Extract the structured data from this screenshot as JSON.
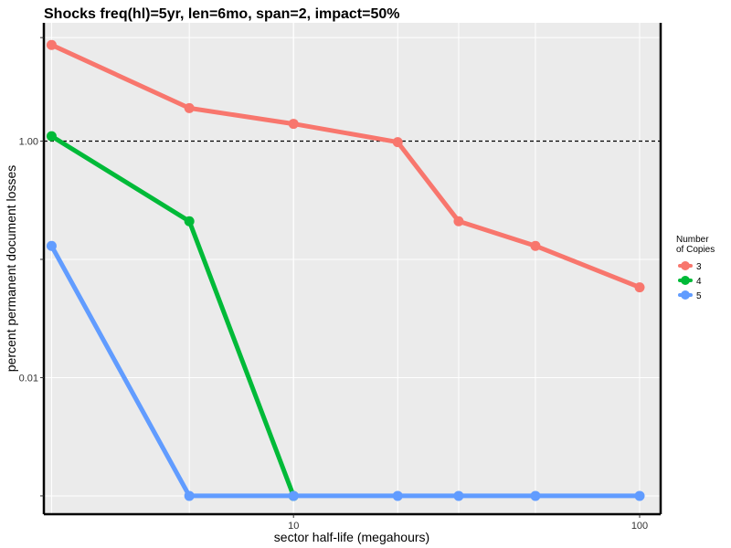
{
  "chart_data": {
    "type": "line",
    "title": "Shocks freq(hl)=5yr, len=6mo, span=2, impact=50%",
    "xlabel": "sector half-life (megahours)",
    "ylabel": "percent permanent document losses",
    "x_scale": "log10",
    "y_scale": "log10",
    "xlim": [
      1.9,
      115
    ],
    "ylim": [
      0.0007,
      10
    ],
    "x_ticks": [
      {
        "value": 10,
        "label": "10"
      },
      {
        "value": 100,
        "label": "100"
      }
    ],
    "y_ticks": [
      {
        "value": 0.01,
        "label": "0.01"
      },
      {
        "value": 1,
        "label": "1.00"
      }
    ],
    "x_minor_gridlines": [
      2,
      5,
      10,
      20,
      30,
      50,
      100
    ],
    "y_minor_gridlines": [
      0.001,
      0.1,
      7.5
    ],
    "reference_line": {
      "y": 1,
      "style": "dashed"
    },
    "legend": {
      "title_lines": [
        "Number",
        "of Copies"
      ],
      "position": "right"
    },
    "series": [
      {
        "name": "3",
        "color": "#F8766D",
        "x": [
          2,
          5,
          10,
          20,
          30,
          50,
          100
        ],
        "y": [
          6.5,
          1.9,
          1.4,
          0.98,
          0.21,
          0.13,
          0.058
        ]
      },
      {
        "name": "4",
        "color": "#00BA38",
        "x": [
          2,
          5,
          10
        ],
        "y": [
          1.1,
          0.21,
          0.001
        ]
      },
      {
        "name": "5",
        "color": "#619CFF",
        "x": [
          2,
          5,
          10,
          20,
          30,
          50,
          100
        ],
        "y": [
          0.13,
          0.001,
          0.001,
          0.001,
          0.001,
          0.001,
          0.001
        ]
      }
    ]
  }
}
